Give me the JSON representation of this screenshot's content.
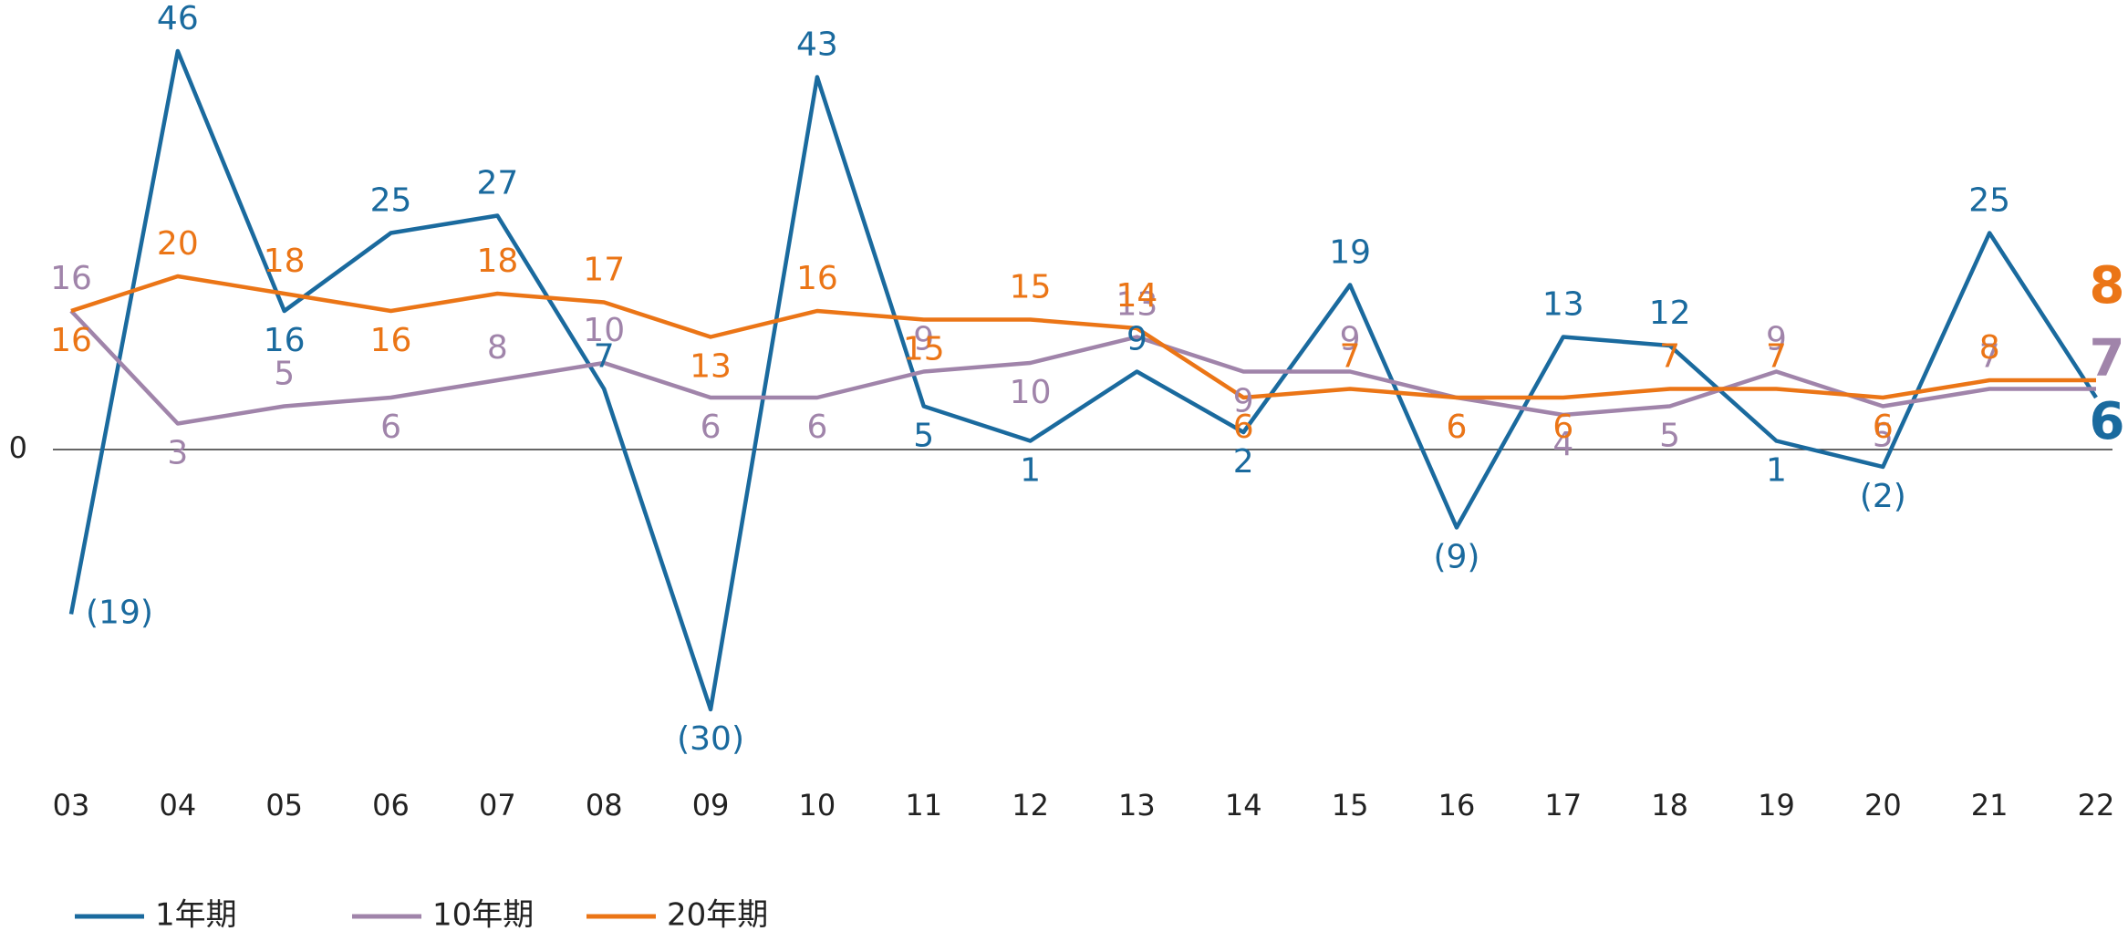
{
  "chart_data": {
    "type": "line",
    "categories": [
      "03",
      "04",
      "05",
      "06",
      "07",
      "08",
      "09",
      "10",
      "11",
      "12",
      "13",
      "14",
      "15",
      "16",
      "17",
      "18",
      "19",
      "20",
      "21",
      "22"
    ],
    "series": [
      {
        "name": "1年期",
        "color": "#1a6a9e",
        "values": [
          -19,
          46,
          16,
          25,
          27,
          7,
          -30,
          43,
          5,
          1,
          9,
          2,
          19,
          -9,
          13,
          12,
          1,
          -2,
          25,
          6
        ],
        "value_labels": [
          "(19)",
          "46",
          "16",
          "25",
          "27",
          "7",
          "(30)",
          "43",
          "5",
          "1",
          "9",
          "2",
          "19",
          "(9)",
          "13",
          "12",
          "1",
          "(2)",
          "25",
          "6"
        ]
      },
      {
        "name": "10年期",
        "color": "#a084aa",
        "values": [
          16,
          3,
          5,
          6,
          8,
          10,
          6,
          6,
          9,
          10,
          13,
          9,
          9,
          6,
          4,
          5,
          9,
          5,
          7,
          7
        ]
      },
      {
        "name": "20年期",
        "color": "#eb7516",
        "values": [
          16,
          20,
          18,
          16,
          18,
          17,
          13,
          16,
          15,
          15,
          14,
          6,
          7,
          6,
          6,
          7,
          7,
          6,
          8,
          8
        ]
      }
    ],
    "ylim": [
      -40,
      50
    ],
    "yticks": [
      0
    ],
    "legend": "bottom"
  }
}
